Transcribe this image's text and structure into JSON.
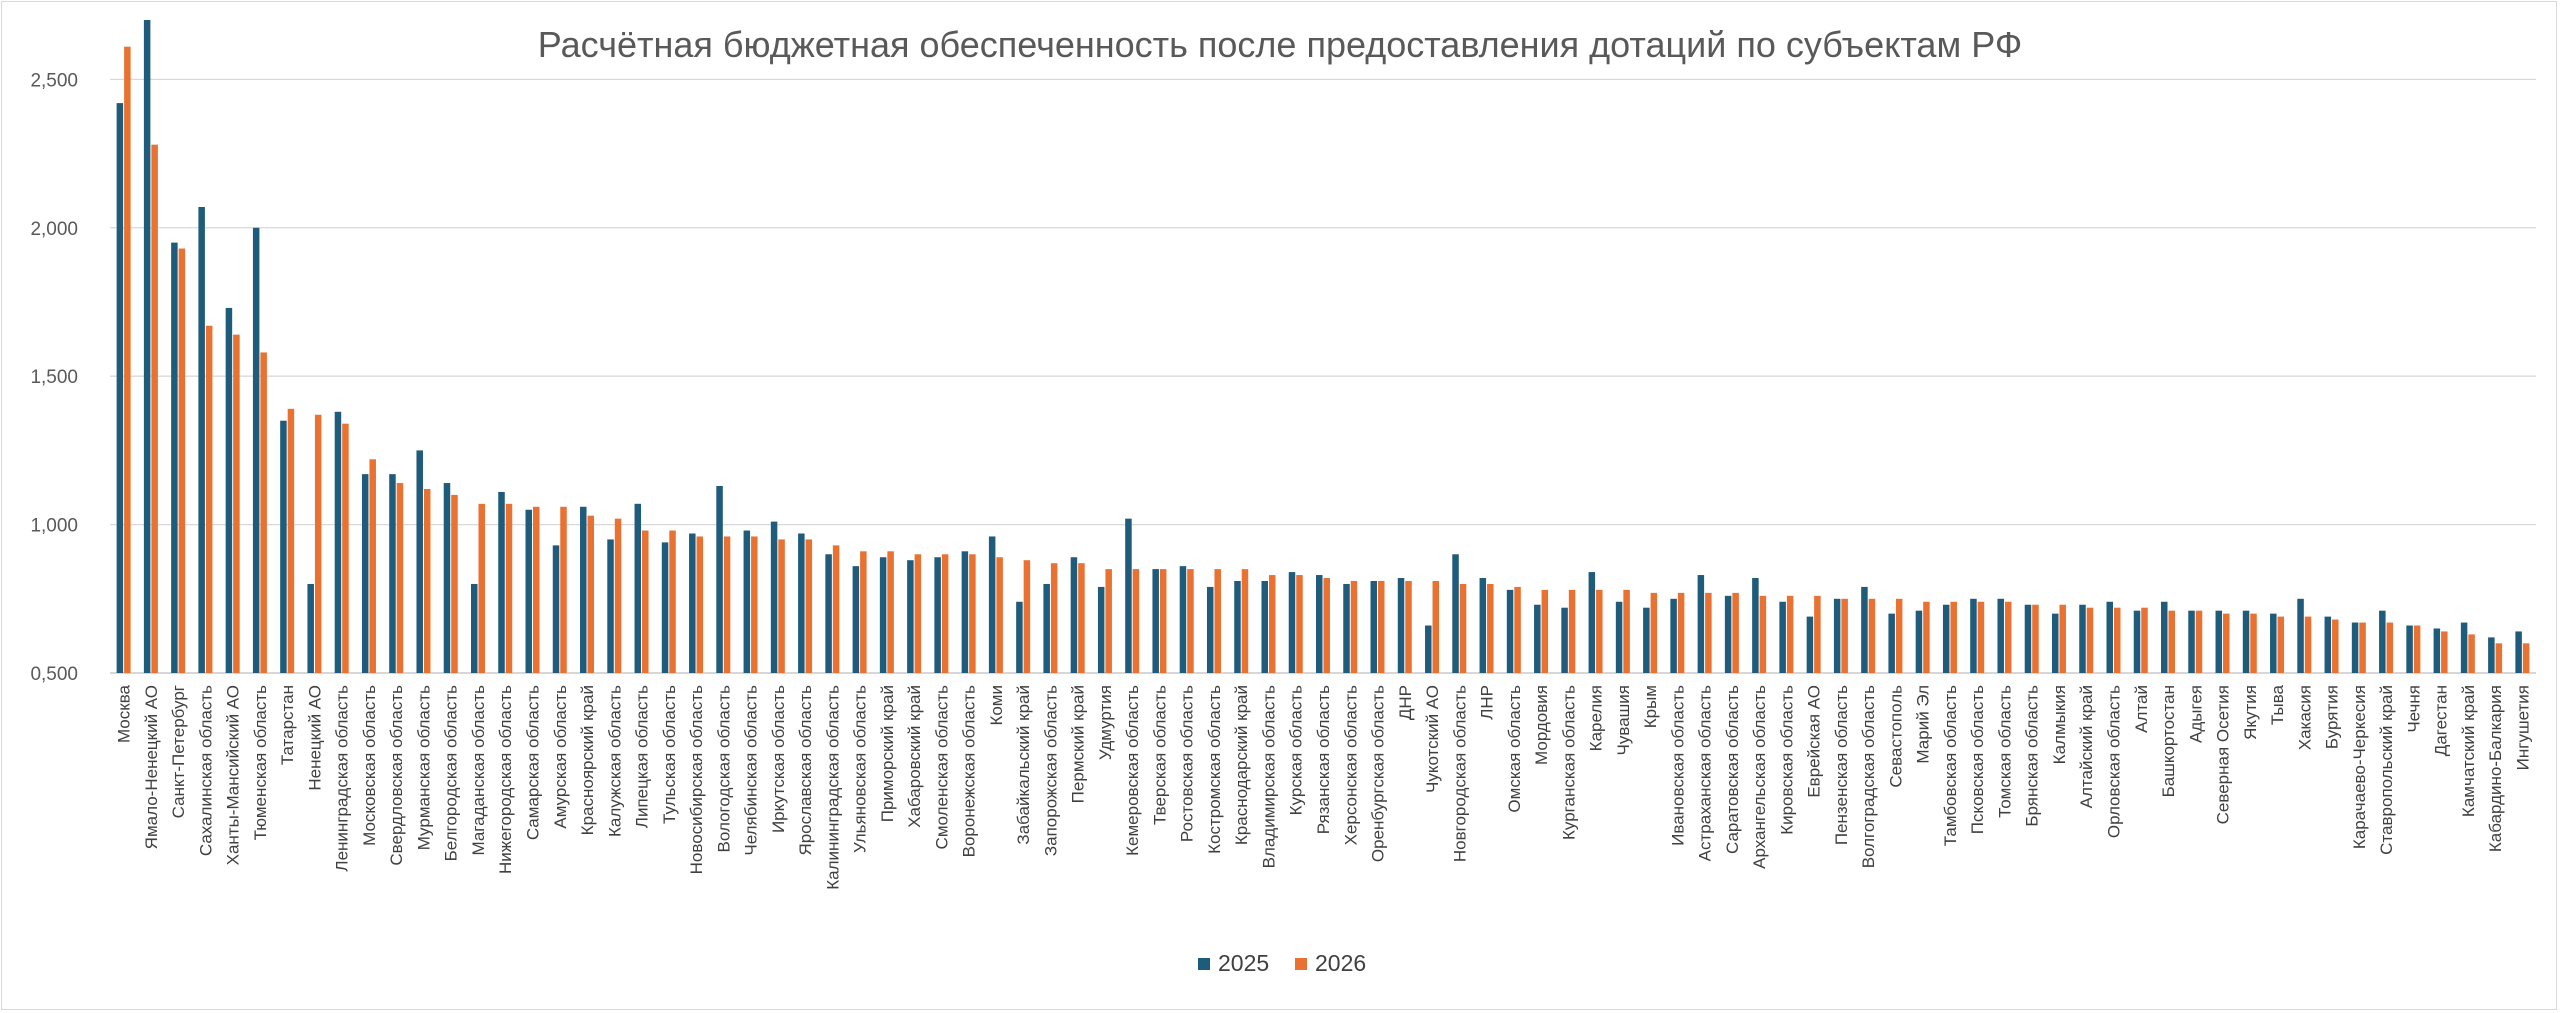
{
  "chart_data": {
    "type": "bar",
    "title": "Расчётная бюджетная обеспеченность после предоставления дотаций по субъектам РФ",
    "xlabel": "",
    "ylabel": "",
    "ylim": [
      0.5,
      2.7
    ],
    "yticks": [
      0.5,
      1.0,
      1.5,
      2.0,
      2.5
    ],
    "ytick_labels": [
      "0,500",
      "1,000",
      "1,500",
      "2,000",
      "2,500"
    ],
    "grid": true,
    "legend_position": "bottom",
    "categories": [
      "Москва",
      "Ямало-Ненецкий АО",
      "Санкт-Петербург",
      "Сахалинская область",
      "Ханты-Мансийский АО",
      "Тюменская область",
      "Татарстан",
      "Ненецкий АО",
      "Ленинградская область",
      "Московская область",
      "Свердловская область",
      "Мурманская область",
      "Белгородская область",
      "Магаданская область",
      "Нижегородская область",
      "Самарская область",
      "Амурская область",
      "Красноярский край",
      "Калужская область",
      "Липецкая область",
      "Тульская область",
      "Новосибирская область",
      "Вологодская область",
      "Челябинская область",
      "Иркутская область",
      "Ярославская область",
      "Калининградская область",
      "Ульяновская область",
      "Приморский край",
      "Хабаровский край",
      "Смоленская область",
      "Воронежская область",
      "Коми",
      "Забайкальский край",
      "Запорожская область",
      "Пермский край",
      "Удмуртия",
      "Кемеровская область",
      "Тверская область",
      "Ростовская область",
      "Костромская область",
      "Краснодарский край",
      "Владимирская область",
      "Курская область",
      "Рязанская область",
      "Херсонская область",
      "Оренбургская область",
      "ДНР",
      "Чукотский АО",
      "Новгородская область",
      "ЛНР",
      "Омская область",
      "Мордовия",
      "Курганская область",
      "Карелия",
      "Чувашия",
      "Крым",
      "Ивановская область",
      "Астраханская область",
      "Саратовская область",
      "Архангельская область",
      "Кировская область",
      "Еврейская АО",
      "Пензенская область",
      "Волгоградская область",
      "Севастополь",
      "Марий Эл",
      "Тамбовская область",
      "Псковская область",
      "Томская область",
      "Брянская область",
      "Калмыкия",
      "Алтайский край",
      "Орловская область",
      "Алтай",
      "Башкортостан",
      "Адыгея",
      "Северная Осетия",
      "Якутия",
      "Тыва",
      "Хакасия",
      "Бурятия",
      "Карачаево-Черкесия",
      "Ставропольский край",
      "Чечня",
      "Дагестан",
      "Камчатский край",
      "Кабардино-Балкария",
      "Ингушетия"
    ],
    "series": [
      {
        "name": "2025",
        "color": "#1f5b7a",
        "values": [
          2.42,
          2.7,
          1.95,
          2.07,
          1.73,
          2.0,
          1.35,
          0.8,
          1.38,
          1.17,
          1.17,
          1.25,
          1.14,
          0.8,
          1.11,
          1.05,
          0.93,
          1.06,
          0.95,
          1.07,
          0.94,
          0.97,
          1.13,
          0.98,
          1.01,
          0.97,
          0.9,
          0.86,
          0.89,
          0.88,
          0.89,
          0.91,
          0.96,
          0.74,
          0.8,
          0.89,
          0.79,
          1.02,
          0.85,
          0.86,
          0.79,
          0.81,
          0.81,
          0.84,
          0.83,
          0.8,
          0.81,
          0.82,
          0.66,
          0.9,
          0.82,
          0.78,
          0.73,
          0.72,
          0.84,
          0.74,
          0.72,
          0.75,
          0.83,
          0.76,
          0.82,
          0.74,
          0.69,
          0.75,
          0.79,
          0.7,
          0.71,
          0.73,
          0.75,
          0.75,
          0.73,
          0.7,
          0.73,
          0.74,
          0.71,
          0.74,
          0.71,
          0.71,
          0.71,
          0.7,
          0.75,
          0.69,
          0.67,
          0.71,
          0.66,
          0.65,
          0.67,
          0.62,
          0.64
        ]
      },
      {
        "name": "2026",
        "color": "#e97132",
        "values": [
          2.61,
          2.28,
          1.93,
          1.67,
          1.64,
          1.58,
          1.39,
          1.37,
          1.34,
          1.22,
          1.14,
          1.12,
          1.1,
          1.07,
          1.07,
          1.06,
          1.06,
          1.03,
          1.02,
          0.98,
          0.98,
          0.96,
          0.96,
          0.96,
          0.95,
          0.95,
          0.93,
          0.91,
          0.91,
          0.9,
          0.9,
          0.9,
          0.89,
          0.88,
          0.87,
          0.87,
          0.85,
          0.85,
          0.85,
          0.85,
          0.85,
          0.85,
          0.83,
          0.83,
          0.82,
          0.81,
          0.81,
          0.81,
          0.81,
          0.8,
          0.8,
          0.79,
          0.78,
          0.78,
          0.78,
          0.78,
          0.77,
          0.77,
          0.77,
          0.77,
          0.76,
          0.76,
          0.76,
          0.75,
          0.75,
          0.75,
          0.74,
          0.74,
          0.74,
          0.74,
          0.73,
          0.73,
          0.72,
          0.72,
          0.72,
          0.71,
          0.71,
          0.7,
          0.7,
          0.69,
          0.69,
          0.68,
          0.67,
          0.67,
          0.66,
          0.64,
          0.63,
          0.6,
          0.6
        ]
      }
    ]
  }
}
